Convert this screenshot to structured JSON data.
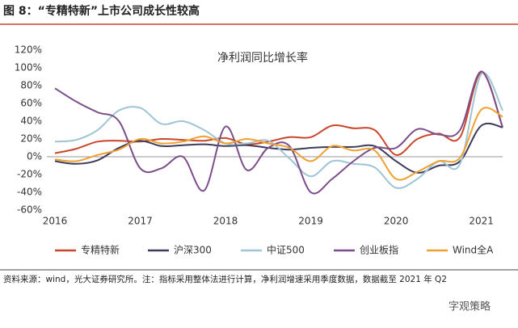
{
  "header": {
    "title": "图 8：“专精特新”上市公司成长性较高"
  },
  "chart_data": {
    "type": "line",
    "title": "净利润同比增长率",
    "x": [
      2016,
      2016.25,
      2016.5,
      2016.75,
      2017,
      2017.25,
      2017.5,
      2017.75,
      2018,
      2018.25,
      2018.5,
      2018.75,
      2019,
      2019.25,
      2019.5,
      2019.75,
      2020,
      2020.25,
      2020.5,
      2020.75,
      2021,
      2021.25
    ],
    "xlim": [
      2016,
      2021.25
    ],
    "xticks": [
      2016,
      2017,
      2018,
      2019,
      2020,
      2021
    ],
    "ylim": [
      -60,
      120
    ],
    "yticks": [
      {
        "value": -60,
        "label": "-60%"
      },
      {
        "value": -40,
        "label": "-40%"
      },
      {
        "value": -20,
        "label": "-20%"
      },
      {
        "value": 0,
        "label": "0%"
      },
      {
        "value": 20,
        "label": "20%"
      },
      {
        "value": 40,
        "label": "40%"
      },
      {
        "value": 60,
        "label": "60%"
      },
      {
        "value": 80,
        "label": "80%"
      },
      {
        "value": 100,
        "label": "100%"
      },
      {
        "value": 120,
        "label": "120%"
      }
    ],
    "grid": false,
    "series": [
      {
        "name": "专精特新",
        "color": "#c9462c",
        "values": [
          4,
          9,
          17,
          18,
          17,
          20,
          19,
          18,
          21,
          14,
          17,
          22,
          22,
          35,
          32,
          30,
          2,
          20,
          26,
          22,
          95,
          33
        ]
      },
      {
        "name": "沪深300",
        "color": "#3b3b5c",
        "values": [
          -5,
          -8,
          -4,
          10,
          18,
          12,
          13,
          14,
          12,
          13,
          10,
          8,
          10,
          11,
          11,
          12,
          -5,
          -18,
          -10,
          -5,
          35,
          33
        ]
      },
      {
        "name": "中证500",
        "color": "#9fc5d4",
        "values": [
          17,
          19,
          30,
          52,
          55,
          37,
          40,
          30,
          15,
          15,
          18,
          -2,
          -22,
          -5,
          -8,
          -12,
          -35,
          -25,
          -5,
          -8,
          93,
          52
        ]
      },
      {
        "name": "创业板指",
        "color": "#7b4e8a",
        "values": [
          77,
          62,
          50,
          40,
          -13,
          -13,
          0,
          -38,
          34,
          -15,
          10,
          12,
          -40,
          -25,
          -5,
          10,
          10,
          31,
          25,
          30,
          96,
          33
        ]
      },
      {
        "name": "Wind全A",
        "color": "#f0a030",
        "values": [
          -3,
          -5,
          2,
          8,
          20,
          15,
          17,
          23,
          15,
          20,
          15,
          10,
          -5,
          12,
          7,
          7,
          -25,
          -17,
          -5,
          -1,
          53,
          45
        ]
      }
    ]
  },
  "footer": {
    "source": "资料来源：wind，光大证券研究所。注：指标采用整体法进行计算，净利润增速采用季度数据，数据截至 2021 年 Q2",
    "watermark": "字观策略"
  }
}
